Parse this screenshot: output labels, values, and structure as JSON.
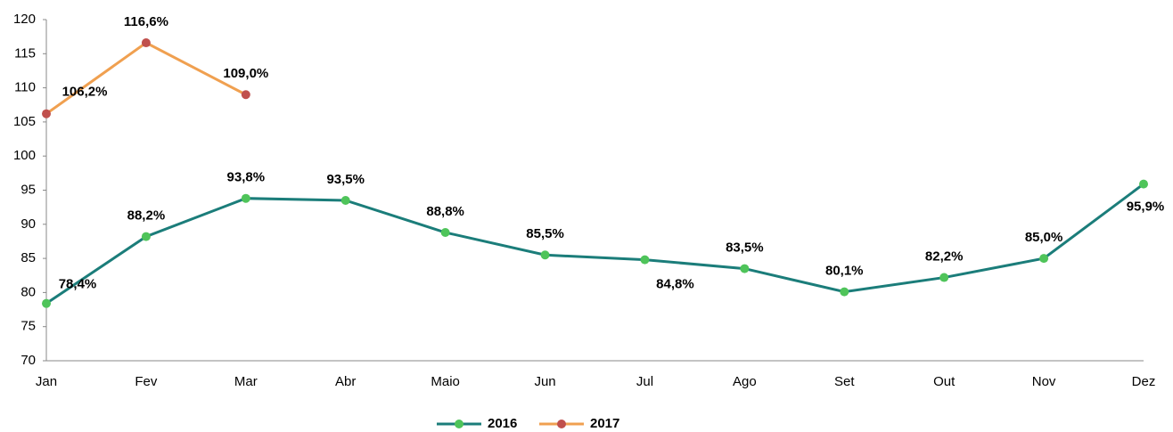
{
  "chart_data": {
    "type": "line",
    "categories": [
      "Jan",
      "Fev",
      "Mar",
      "Abr",
      "Maio",
      "Jun",
      "Jul",
      "Ago",
      "Set",
      "Out",
      "Nov",
      "Dez"
    ],
    "series": [
      {
        "name": "2016",
        "color": "#1b7d7a",
        "marker_color": "#4fc45a",
        "values": [
          78.4,
          88.2,
          93.8,
          93.5,
          88.8,
          85.5,
          84.8,
          83.5,
          80.1,
          82.2,
          85.0,
          95.9
        ],
        "value_labels": [
          "78,4%",
          "88,2%",
          "93,8%",
          "93,5%",
          "88,8%",
          "85,5%",
          "84,8%",
          "83,5%",
          "80,1%",
          "82,2%",
          "85,0%",
          "95,9%"
        ]
      },
      {
        "name": "2017",
        "color": "#f0a050",
        "marker_color": "#c0504d",
        "values": [
          106.2,
          116.6,
          109.0,
          null,
          null,
          null,
          null,
          null,
          null,
          null,
          null,
          null
        ],
        "value_labels": [
          "106,2%",
          "116,6%",
          "109,0%",
          null,
          null,
          null,
          null,
          null,
          null,
          null,
          null,
          null
        ]
      }
    ],
    "ylim": [
      70,
      120
    ],
    "yticks": [
      70,
      75,
      80,
      85,
      90,
      95,
      100,
      105,
      110,
      115,
      120
    ],
    "grid": false,
    "legend": "bottom"
  }
}
